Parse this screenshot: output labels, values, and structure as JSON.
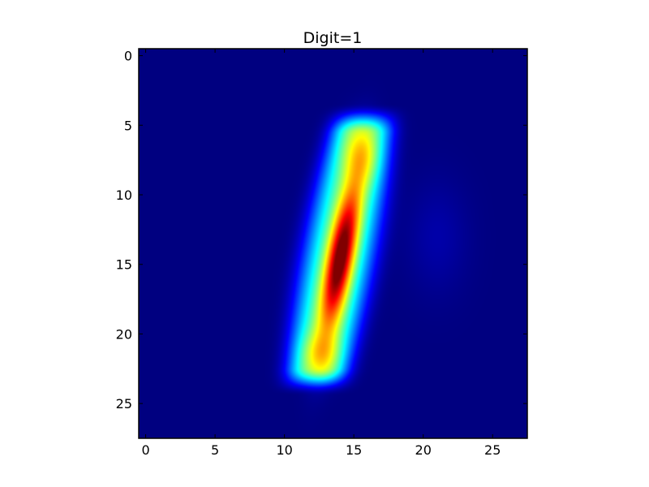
{
  "chart_data": {
    "type": "heatmap",
    "title": "Digit=1",
    "xlabel": "",
    "ylabel": "",
    "colormap": "jet",
    "grid": false,
    "image_shape": [
      28,
      28
    ],
    "xlim": [
      -0.5,
      27.5
    ],
    "ylim": [
      27.5,
      -0.5
    ],
    "x_ticks": [
      0,
      5,
      10,
      15,
      20,
      25
    ],
    "x_tick_labels": [
      "0",
      "5",
      "10",
      "15",
      "20",
      "25"
    ],
    "y_ticks": [
      0,
      5,
      10,
      15,
      20,
      25
    ],
    "y_tick_labels": [
      "0",
      "5",
      "10",
      "15",
      "20",
      "25"
    ],
    "stroke": {
      "top": [
        15.6,
        5.0
      ],
      "bottom": [
        12.3,
        23.0
      ],
      "peak_location": [
        14.0,
        14.5
      ],
      "peak_value": 1.0
    },
    "value_range": [
      0,
      1
    ]
  }
}
